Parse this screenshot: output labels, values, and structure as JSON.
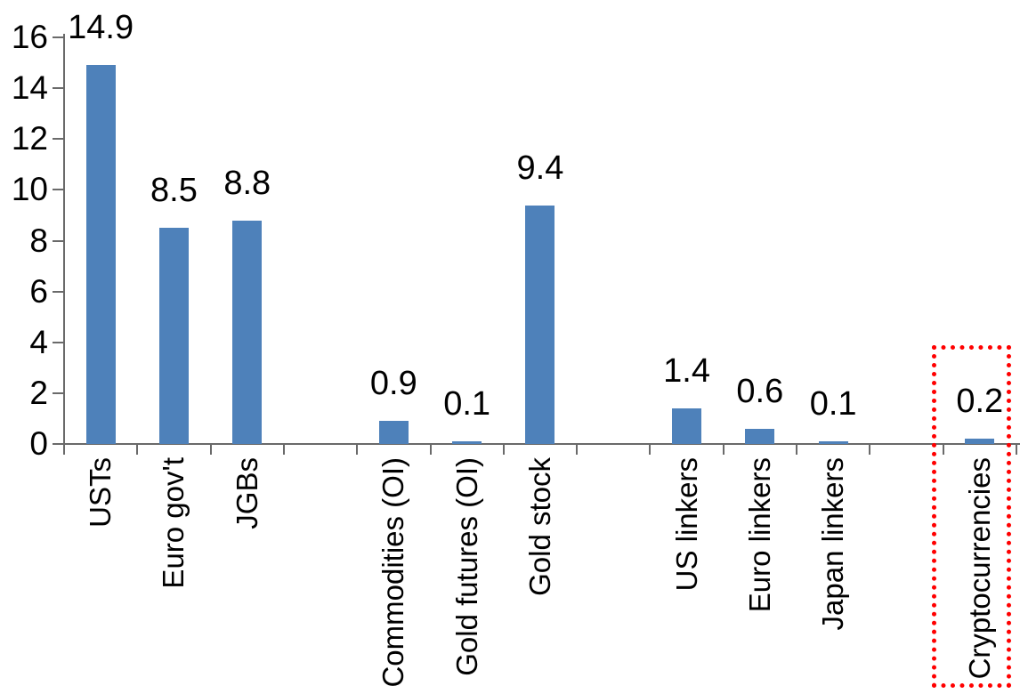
{
  "chart_data": {
    "type": "bar",
    "title": "",
    "categories": [
      "USTs",
      "Euro gov't",
      "JGBs",
      "Commodities (OI)",
      "Gold futures (OI)",
      "Gold stock",
      "US linkers",
      "Euro linkers",
      "Japan linkers",
      "Cryptocurrencies"
    ],
    "values": [
      14.9,
      8.5,
      8.8,
      0.9,
      0.1,
      9.4,
      1.4,
      0.6,
      0.1,
      0.2
    ],
    "data_labels": [
      "14.9",
      "8.5",
      "8.8",
      "0.9",
      "0.1",
      "9.4",
      "1.4",
      "0.6",
      "0.1",
      "0.2"
    ],
    "slot_of_category": [
      0,
      1,
      2,
      4,
      5,
      6,
      8,
      9,
      10,
      12
    ],
    "total_slots": 13,
    "y_axis": {
      "min": 0,
      "max": 16,
      "tick_step": 2,
      "tick_labels": [
        "0",
        "2",
        "4",
        "6",
        "8",
        "10",
        "12",
        "14",
        "16"
      ]
    },
    "grid": false,
    "legend": "none",
    "x_label_rotation_degrees": 90,
    "bar_color": "#4e81ba",
    "axis_color": "#6a6a6a",
    "text_color": "#000000",
    "highlight": {
      "category": "Cryptocurrencies",
      "style": "dotted-box",
      "color": "#ff0000"
    }
  }
}
